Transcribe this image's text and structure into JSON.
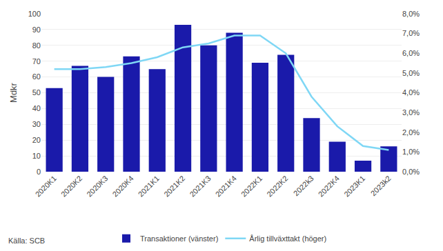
{
  "chart_data": {
    "type": "bar",
    "ylabel": "Mdkr",
    "annotations": [
      "Källa: SCB"
    ],
    "categories": [
      "2020K1",
      "2020K2",
      "2020K3",
      "2020K4",
      "2021K1",
      "2021K2",
      "2021K3",
      "2021K4",
      "2022K1",
      "2022K2",
      "2022k3",
      "2022K4",
      "2023K1",
      "2023k2"
    ],
    "series": [
      {
        "name": "Transaktioner (vänster)",
        "type": "bar",
        "color": "#1a1aaa",
        "values": [
          53,
          67,
          60,
          73,
          65,
          93,
          80,
          88,
          69,
          74,
          34,
          19,
          7,
          16
        ]
      },
      {
        "name": "Årlig tillväxttakt (höger)",
        "type": "line",
        "axis": "y2",
        "color": "#7fd7f5",
        "values": [
          5.2,
          5.2,
          5.3,
          5.5,
          5.8,
          6.3,
          6.5,
          6.9,
          6.9,
          6.0,
          3.8,
          2.3,
          1.3,
          1.1
        ]
      }
    ],
    "ylim": [
      0,
      100
    ],
    "yticks": [
      0,
      10,
      20,
      30,
      40,
      50,
      60,
      70,
      80,
      90,
      100
    ],
    "y2lim": [
      0,
      8.0
    ],
    "y2ticks": [
      {
        "value": 0.0,
        "label": "0,0%"
      },
      {
        "value": 1.0,
        "label": "1,0%"
      },
      {
        "value": 2.0,
        "label": "2,0%"
      },
      {
        "value": 3.0,
        "label": "3,0%"
      },
      {
        "value": 4.0,
        "label": "4,0%"
      },
      {
        "value": 5.0,
        "label": "5,0%"
      },
      {
        "value": 6.0,
        "label": "6,0%"
      },
      {
        "value": 7.0,
        "label": "7,0%"
      },
      {
        "value": 8.0,
        "label": "8,0%"
      }
    ],
    "grid": true,
    "legend": "bottom"
  }
}
